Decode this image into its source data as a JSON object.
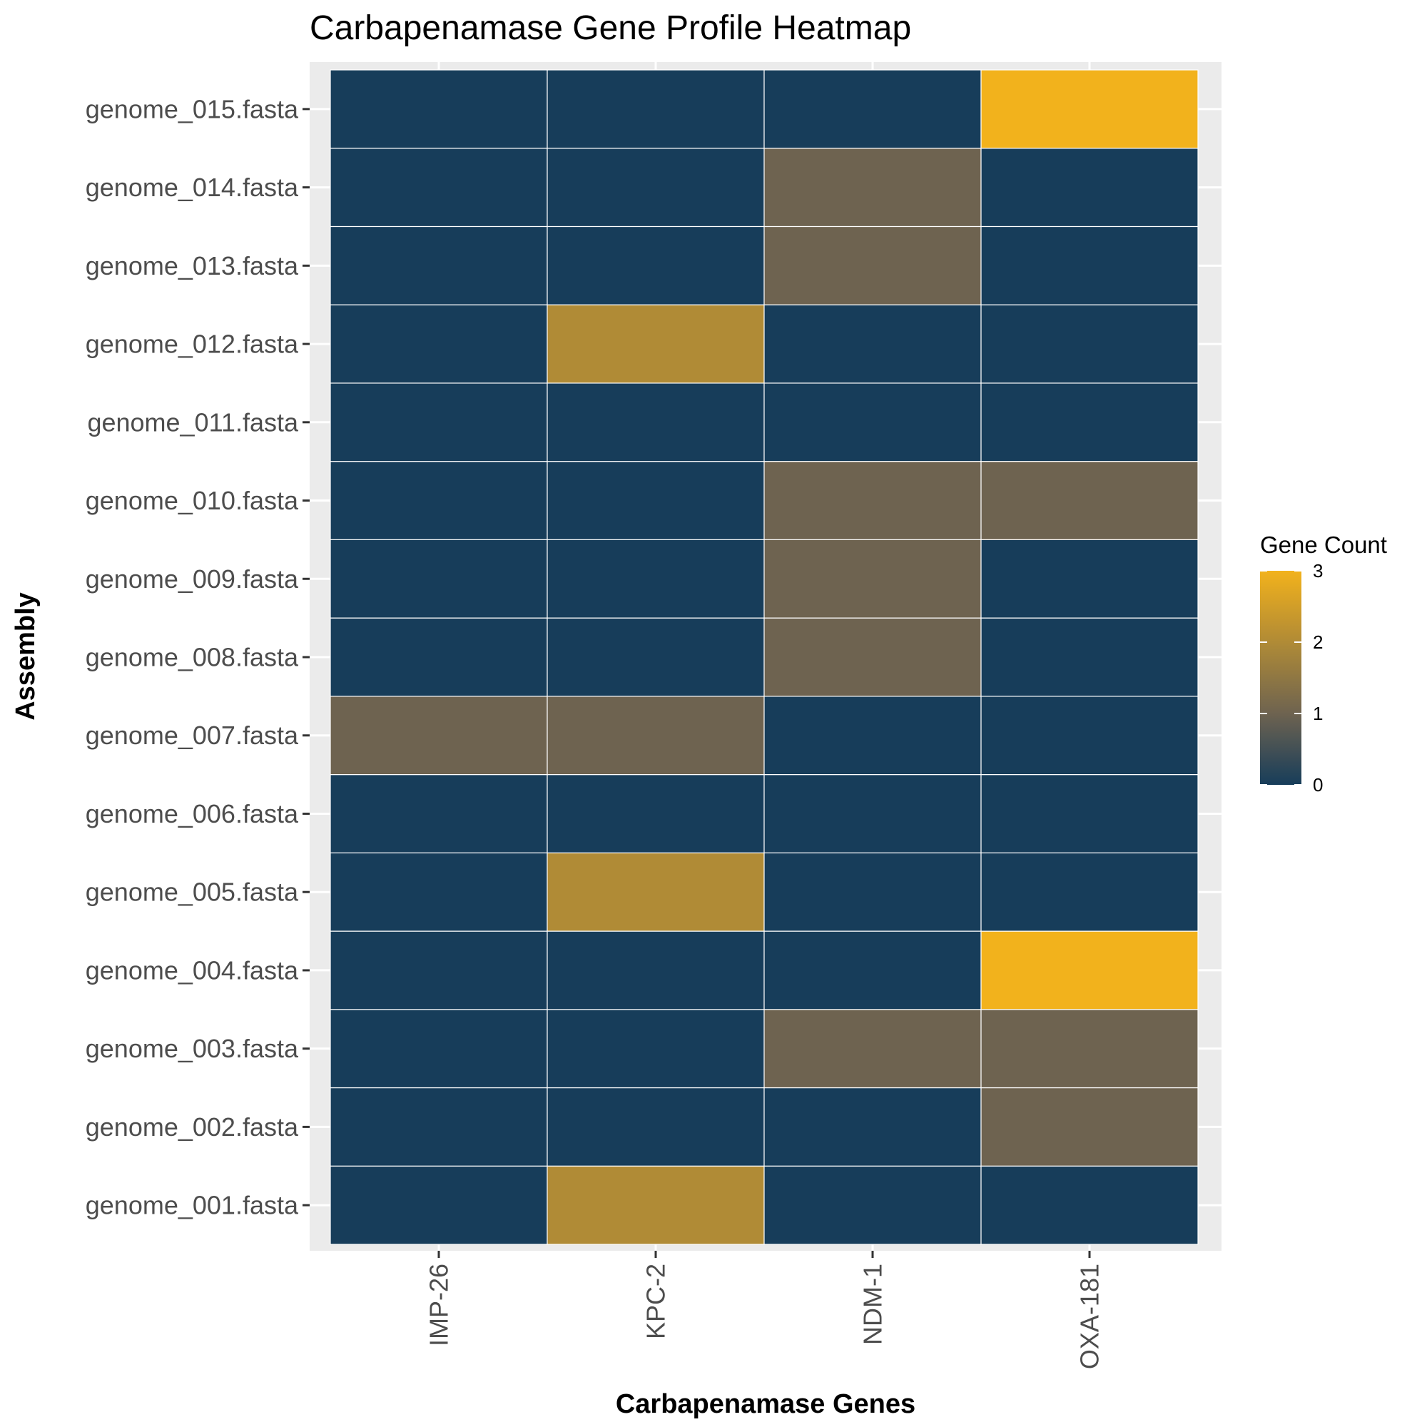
{
  "chart_data": {
    "type": "heatmap",
    "title": "Carbapenamase Gene Profile Heatmap",
    "xlabel": "Carbapenamase Genes",
    "ylabel": "Assembly",
    "x_categories": [
      "IMP-26",
      "KPC-2",
      "NDM-1",
      "OXA-181"
    ],
    "y_categories": [
      "genome_001.fasta",
      "genome_002.fasta",
      "genome_003.fasta",
      "genome_004.fasta",
      "genome_005.fasta",
      "genome_006.fasta",
      "genome_007.fasta",
      "genome_008.fasta",
      "genome_009.fasta",
      "genome_010.fasta",
      "genome_011.fasta",
      "genome_012.fasta",
      "genome_013.fasta",
      "genome_014.fasta",
      "genome_015.fasta"
    ],
    "values": [
      [
        0,
        2,
        0,
        0
      ],
      [
        0,
        0,
        0,
        1
      ],
      [
        0,
        0,
        1,
        1
      ],
      [
        0,
        0,
        0,
        3
      ],
      [
        0,
        2,
        0,
        0
      ],
      [
        0,
        0,
        0,
        0
      ],
      [
        1,
        1,
        0,
        0
      ],
      [
        0,
        0,
        1,
        0
      ],
      [
        0,
        0,
        1,
        0
      ],
      [
        0,
        0,
        1,
        1
      ],
      [
        0,
        0,
        0,
        0
      ],
      [
        0,
        2,
        0,
        0
      ],
      [
        0,
        0,
        1,
        0
      ],
      [
        0,
        0,
        1,
        0
      ],
      [
        0,
        0,
        0,
        3
      ]
    ],
    "legend": {
      "title": "Gene Count",
      "ticks": [
        0,
        1,
        2,
        3
      ],
      "position": "right"
    },
    "color_scale": {
      "low": "#173D5A",
      "mid": "#6E6350",
      "high": "#F2B21C",
      "range": [
        0,
        3
      ]
    },
    "panel_background": "#EBEBEB",
    "grid": true
  }
}
